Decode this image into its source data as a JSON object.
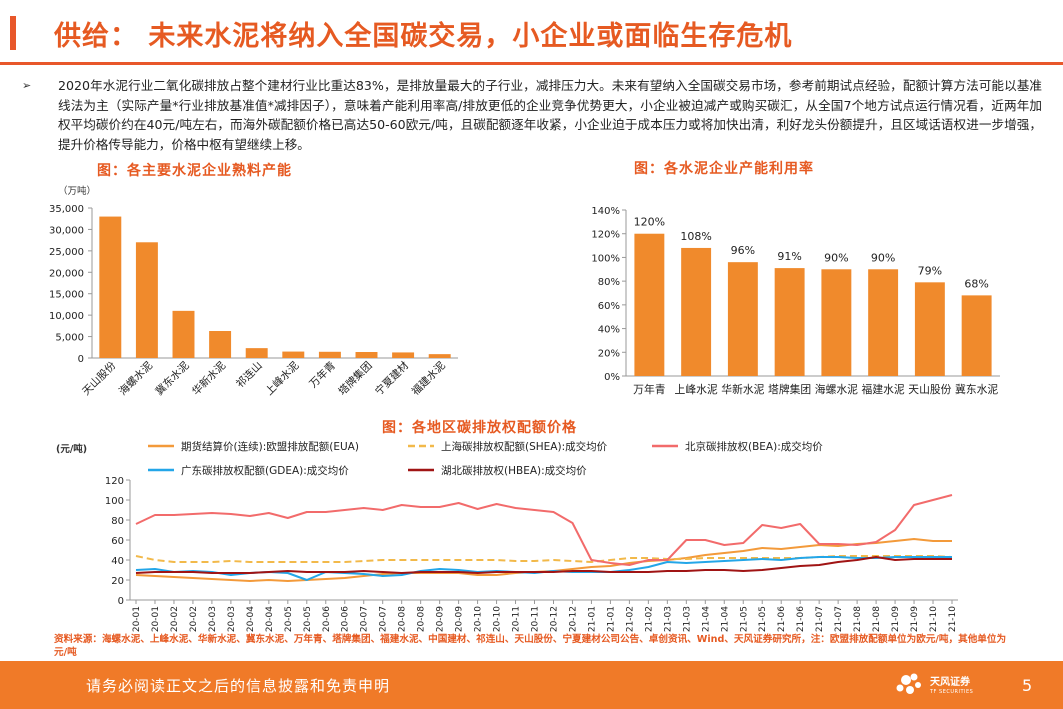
{
  "header": {
    "title": "供给： 未来水泥将纳入全国碳交易，小企业或面临生存危机"
  },
  "bullet": {
    "marker": "➢",
    "text": "2020年水泥行业二氧化碳排放占整个建材行业比重达83%，是排放量最大的子行业，减排压力大。未来有望纳入全国碳交易市场，参考前期试点经验，配额计算方法可能以基准线法为主（实际产量*行业排放基准值*减排因子），意味着产能利用率高/排放更低的企业竞争优势更大，小企业被迫减产或购买碳汇，从全国7个地方试点运行情况看，近两年加权平均碳价约在40元/吨左右，而海外碳配额价格已高达50-60欧元/吨，且碳配额逐年收紧，小企业迫于成本压力或将加快出清，利好龙头份额提升，且区域话语权进一步增强，提升价格传导能力，价格中枢有望继续上移。"
  },
  "figures": {
    "fig1_title": "图：各主要水泥企业熟料产能",
    "fig2_title": "图：各水泥企业产能利用率",
    "fig3_title": "图：各地区碳排放权配额价格",
    "source": "资料来源：海螺水泥、上峰水泥、华新水泥、冀东水泥、万年青、塔牌集团、福建水泥、中国建材、祁连山、天山股份、宁夏建材公司公告、卓创资讯、Wind、天风证券研究所，注：欧盟排放配额单位为欧元/吨，其他单位为元/吨"
  },
  "chart_data": [
    {
      "type": "bar",
      "title": "图：各主要水泥企业熟料产能",
      "unit_label": "（万吨）",
      "categories": [
        "天山股份",
        "海螺水泥",
        "冀东水泥",
        "华新水泥",
        "祁连山",
        "上峰水泥",
        "万年青",
        "塔牌集团",
        "宁夏建材",
        "福建水泥"
      ],
      "values": [
        33000,
        27000,
        11000,
        6300,
        2300,
        1500,
        1450,
        1400,
        1300,
        900
      ],
      "ylim": [
        0,
        35000
      ],
      "yticks": [
        "0",
        "5,000",
        "10,000",
        "15,000",
        "20,000",
        "25,000",
        "30,000",
        "35,000"
      ],
      "color": "#f08a2c"
    },
    {
      "type": "bar",
      "title": "图：各水泥企业产能利用率",
      "categories": [
        "万年青",
        "上峰水泥",
        "华新水泥",
        "塔牌集团",
        "海螺水泥",
        "福建水泥",
        "天山股份",
        "冀东水泥"
      ],
      "values": [
        120,
        108,
        96,
        91,
        90,
        90,
        79,
        68
      ],
      "labels": [
        "120%",
        "108%",
        "96%",
        "91%",
        "90%",
        "90%",
        "79%",
        "68%"
      ],
      "ylim": [
        0,
        140
      ],
      "yticks": [
        "0%",
        "20%",
        "40%",
        "60%",
        "80%",
        "100%",
        "120%",
        "140%"
      ],
      "color": "#f08a2c"
    },
    {
      "type": "line",
      "title": "图：各地区碳排放权配额价格",
      "unit_label": "(元/吨)",
      "x": [
        "20-01",
        "20-01",
        "20-02",
        "20-02",
        "20-03",
        "20-03",
        "20-04",
        "20-04",
        "20-05",
        "20-05",
        "20-06",
        "20-06",
        "20-07",
        "20-07",
        "20-08",
        "20-08",
        "20-09",
        "20-09",
        "20-10",
        "20-10",
        "20-11",
        "20-11",
        "20-12",
        "20-12",
        "21-01",
        "21-01",
        "21-02",
        "21-02",
        "21-03",
        "21-03",
        "21-04",
        "21-04",
        "21-05",
        "21-05",
        "21-06",
        "21-06",
        "21-07",
        "21-07",
        "21-08",
        "21-08",
        "21-09",
        "21-09",
        "21-10",
        "21-10"
      ],
      "ylim": [
        0,
        120
      ],
      "yticks": [
        "0",
        "20",
        "40",
        "60",
        "80",
        "100",
        "120"
      ],
      "series": [
        {
          "name": "期货结算价(连续):欧盟排放配额(EUA)",
          "color": "#f39a3a",
          "dash": false,
          "values": [
            25,
            24,
            23,
            22,
            21,
            20,
            19,
            20,
            19,
            20,
            21,
            22,
            24,
            26,
            27,
            27,
            27,
            27,
            25,
            25,
            27,
            28,
            29,
            31,
            33,
            34,
            37,
            39,
            40,
            42,
            45,
            47,
            49,
            52,
            51,
            53,
            55,
            54,
            56,
            57,
            59,
            61,
            59,
            59
          ]
        },
        {
          "name": "上海碳排放权配额(SHEA):成交均价",
          "color": "#f2b94a",
          "dash": true,
          "values": [
            44,
            40,
            38,
            38,
            38,
            39,
            38,
            38,
            38,
            38,
            38,
            38,
            39,
            40,
            40,
            40,
            40,
            40,
            40,
            40,
            39,
            39,
            40,
            39,
            38,
            40,
            42,
            42,
            41,
            41,
            42,
            42,
            42,
            42,
            42,
            42,
            43,
            44,
            44,
            44,
            44,
            44,
            44,
            43
          ]
        },
        {
          "name": "北京碳排放权(BEA):成交均价",
          "color": "#f26b6b",
          "dash": false,
          "values": [
            76,
            85,
            85,
            86,
            87,
            86,
            84,
            87,
            82,
            88,
            88,
            90,
            92,
            90,
            95,
            93,
            93,
            97,
            91,
            96,
            92,
            90,
            88,
            77,
            40,
            37,
            35,
            40,
            40,
            60,
            60,
            55,
            57,
            75,
            72,
            76,
            56,
            56,
            55,
            58,
            70,
            95,
            100,
            105
          ]
        },
        {
          "name": "广东碳排放权配额(GDEA):成交均价",
          "color": "#23a6e8",
          "dash": false,
          "values": [
            30,
            31,
            28,
            29,
            28,
            25,
            27,
            28,
            27,
            20,
            28,
            27,
            26,
            24,
            25,
            29,
            31,
            30,
            28,
            29,
            28,
            27,
            29,
            28,
            28,
            28,
            30,
            33,
            38,
            37,
            38,
            39,
            40,
            41,
            40,
            42,
            43,
            43,
            42,
            42,
            43,
            43,
            43,
            43
          ]
        },
        {
          "name": "湖北碳排放权(HBEA):成交均价",
          "color": "#a01414",
          "dash": false,
          "values": [
            27,
            28,
            28,
            28,
            27,
            27,
            27,
            28,
            29,
            28,
            28,
            28,
            29,
            28,
            27,
            28,
            28,
            28,
            27,
            28,
            28,
            28,
            28,
            29,
            29,
            28,
            28,
            28,
            29,
            29,
            30,
            30,
            29,
            30,
            32,
            34,
            35,
            38,
            40,
            43,
            40,
            41,
            41,
            41
          ]
        }
      ]
    }
  ],
  "footer": {
    "disclaimer": "请务必阅读正文之后的信息披露和免责申明",
    "brand": "天风证券",
    "brand_en": "TF SECURITIES",
    "page": "5"
  }
}
